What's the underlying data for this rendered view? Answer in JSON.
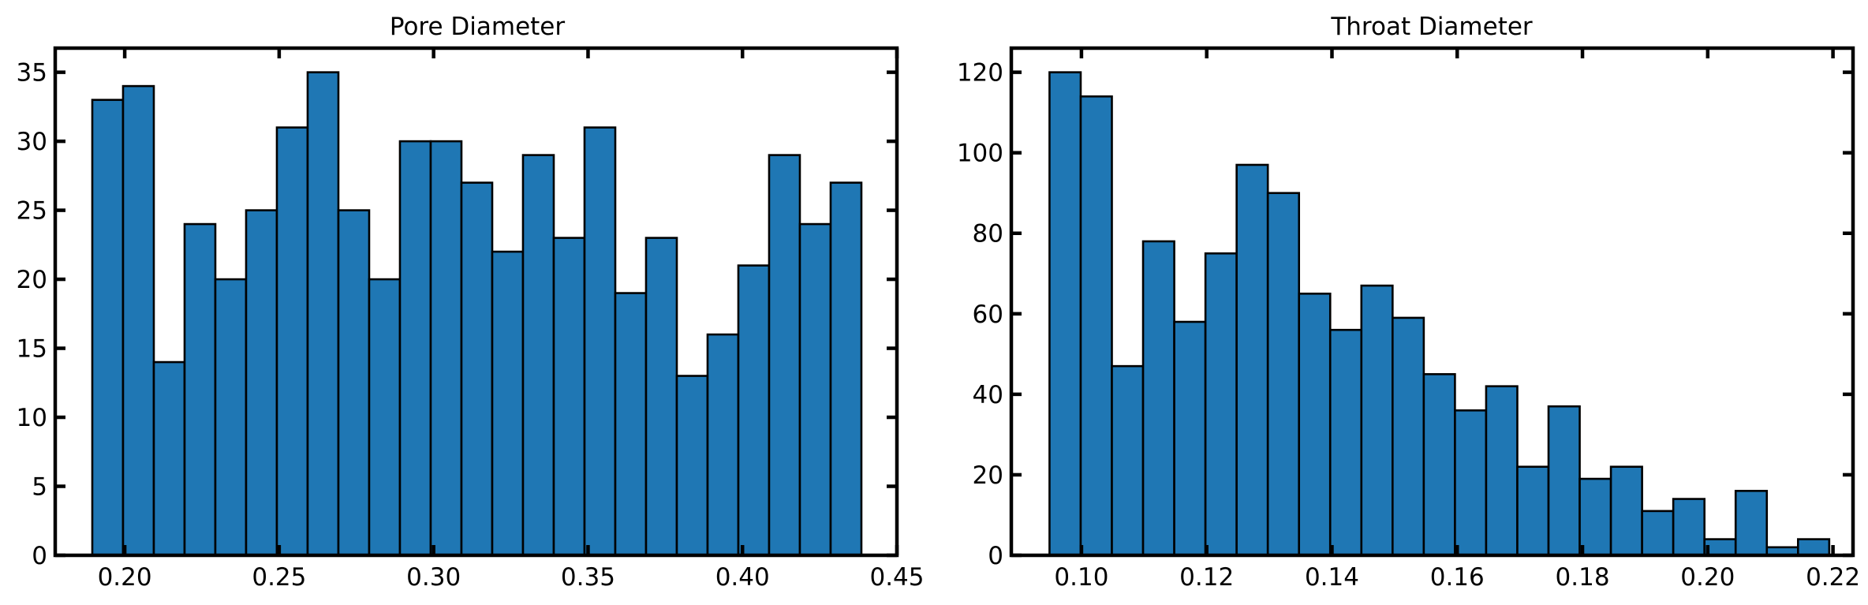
{
  "bar_color": "#1f77b4",
  "edge_color": "#000000",
  "chart_data": [
    {
      "type": "bar",
      "title": "Pore Diameter",
      "xlabel": "",
      "ylabel": "",
      "bin_start": 0.1895,
      "bin_width": 0.00996,
      "values": [
        33,
        34,
        14,
        24,
        20,
        25,
        31,
        35,
        25,
        20,
        30,
        30,
        27,
        22,
        29,
        23,
        31,
        19,
        23,
        13,
        16,
        21,
        29,
        24,
        27
      ],
      "xlim": [
        0.1775,
        0.45
      ],
      "ylim": [
        0,
        36.75
      ],
      "xticks": [
        0.2,
        0.25,
        0.3,
        0.35,
        0.4,
        0.45
      ],
      "xtick_labels": [
        "0.20",
        "0.25",
        "0.30",
        "0.35",
        "0.40",
        "0.45"
      ],
      "yticks": [
        0,
        5,
        10,
        15,
        20,
        25,
        30,
        35
      ],
      "ytick_labels": [
        "0",
        "5",
        "10",
        "15",
        "20",
        "25",
        "30",
        "35"
      ]
    },
    {
      "type": "bar",
      "title": "Throat Diameter",
      "xlabel": "",
      "ylabel": "",
      "bin_start": 0.0949,
      "bin_width": 0.00498,
      "values": [
        120,
        114,
        47,
        78,
        58,
        75,
        97,
        90,
        65,
        56,
        67,
        59,
        45,
        36,
        42,
        22,
        37,
        19,
        22,
        11,
        14,
        4,
        16,
        2,
        4
      ],
      "xlim": [
        0.0888,
        0.2232
      ],
      "ylim": [
        0,
        126
      ],
      "xticks": [
        0.1,
        0.12,
        0.14,
        0.16,
        0.18,
        0.2,
        0.22
      ],
      "xtick_labels": [
        "0.10",
        "0.12",
        "0.14",
        "0.16",
        "0.18",
        "0.20",
        "0.22"
      ],
      "yticks": [
        0,
        20,
        40,
        60,
        80,
        100,
        120
      ],
      "ytick_labels": [
        "0",
        "20",
        "40",
        "60",
        "80",
        "100",
        "120"
      ]
    }
  ]
}
